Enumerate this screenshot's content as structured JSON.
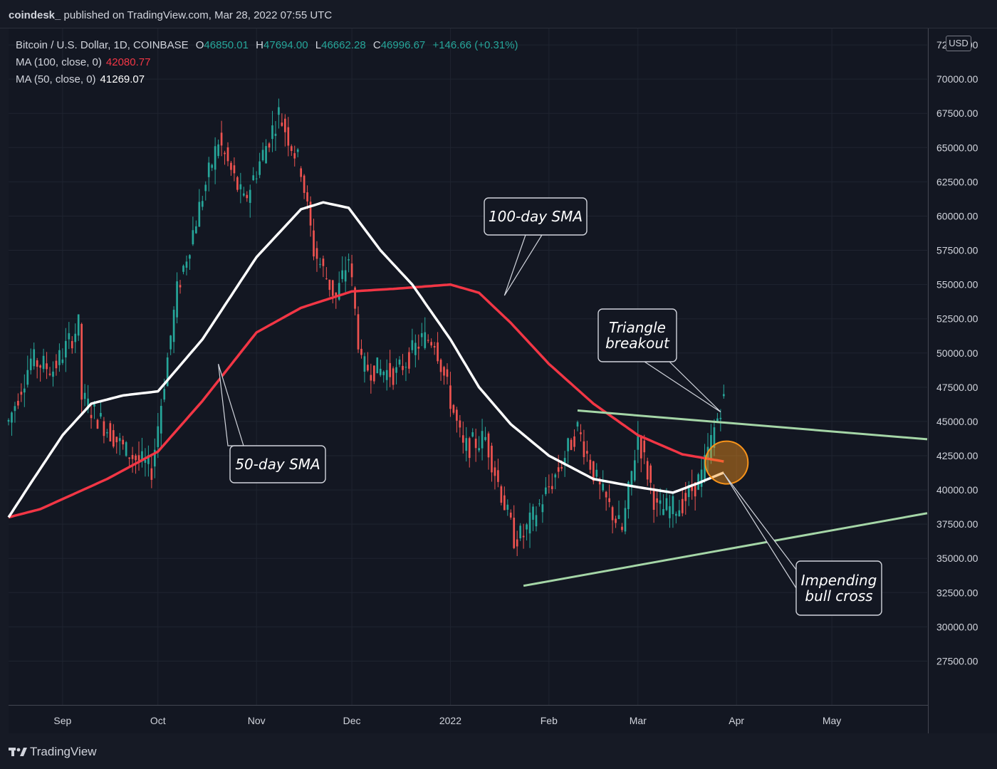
{
  "header": {
    "publisher": "coindesk_",
    "published_text": "published on TradingView.com, Mar 28, 2022 07:55 UTC"
  },
  "legend": {
    "symbol": "Bitcoin / U.S. Dollar, 1D, COINBASE",
    "open_key": "O",
    "open": "46850.01",
    "high_key": "H",
    "high": "47694.00",
    "low_key": "L",
    "low": "46662.28",
    "close_key": "C",
    "close": "46996.67",
    "change": "+146.66 (+0.31%)",
    "ma100_label": "MA (100, close, 0)",
    "ma100_value": "42080.77",
    "ma50_label": "MA (50, close, 0)",
    "ma50_value": "41269.07"
  },
  "price_axis": {
    "currency": "USD"
  },
  "footer": {
    "brand": "TradingView"
  },
  "colors": {
    "up": "#26a69a",
    "down": "#ef5350",
    "sma100": "#f23645",
    "sma50": "#ffffff",
    "triangle": "#a5d6a7",
    "highlight": "#f7931a"
  },
  "chart_data": {
    "type": "candlestick",
    "symbol": "BTCUSD",
    "timeframe": "1D",
    "y_ticks": [
      "72500.00",
      "70000.00",
      "67500.00",
      "65000.00",
      "62500.00",
      "60000.00",
      "57500.00",
      "55000.00",
      "52500.00",
      "50000.00",
      "47500.00",
      "45000.00",
      "42500.00",
      "40000.00",
      "37500.00",
      "35000.00",
      "32500.00",
      "30000.00",
      "27500.00"
    ],
    "ylim": [
      24300,
      73700
    ],
    "x_ticks": [
      {
        "label": "Sep",
        "date": "2021-09-01"
      },
      {
        "label": "Oct",
        "date": "2021-10-01"
      },
      {
        "label": "Nov",
        "date": "2021-11-01"
      },
      {
        "label": "Dec",
        "date": "2021-12-01"
      },
      {
        "label": "2022",
        "date": "2022-01-01"
      },
      {
        "label": "Feb",
        "date": "2022-02-01"
      },
      {
        "label": "Mar",
        "date": "2022-03-01"
      },
      {
        "label": "Apr",
        "date": "2022-04-01"
      },
      {
        "label": "May",
        "date": "2022-05-01"
      }
    ],
    "xlim": [
      "2021-08-15",
      "2022-05-31"
    ],
    "price_keypoints": [
      [
        "2021-08-15",
        45000
      ],
      [
        "2021-08-22",
        49500
      ],
      [
        "2021-08-29",
        48800
      ],
      [
        "2021-09-06",
        52000
      ],
      [
        "2021-09-07",
        46700
      ],
      [
        "2021-09-21",
        42800
      ],
      [
        "2021-09-29",
        41500
      ],
      [
        "2021-10-07",
        54500
      ],
      [
        "2021-10-15",
        61500
      ],
      [
        "2021-10-20",
        65500
      ],
      [
        "2021-10-28",
        61000
      ],
      [
        "2021-11-08",
        67500
      ],
      [
        "2021-11-15",
        63500
      ],
      [
        "2021-11-19",
        57500
      ],
      [
        "2021-11-26",
        54000
      ],
      [
        "2021-11-30",
        57000
      ],
      [
        "2021-12-04",
        49000
      ],
      [
        "2021-12-15",
        48500
      ],
      [
        "2021-12-23",
        51000
      ],
      [
        "2021-12-27",
        51000
      ],
      [
        "2022-01-05",
        43000
      ],
      [
        "2022-01-12",
        43800
      ],
      [
        "2022-01-21",
        36500
      ],
      [
        "2022-01-24",
        36700
      ],
      [
        "2022-02-04",
        41500
      ],
      [
        "2022-02-10",
        44500
      ],
      [
        "2022-02-17",
        40000
      ],
      [
        "2022-02-24",
        37000
      ],
      [
        "2022-03-01",
        44000
      ],
      [
        "2022-03-07",
        38500
      ],
      [
        "2022-03-14",
        38800
      ],
      [
        "2022-03-21",
        41000
      ],
      [
        "2022-03-28",
        47000
      ]
    ],
    "sma100_keypoints": [
      [
        "2021-08-15",
        38000
      ],
      [
        "2021-08-25",
        38600
      ],
      [
        "2021-09-15",
        40800
      ],
      [
        "2021-10-01",
        42800
      ],
      [
        "2021-10-15",
        46500
      ],
      [
        "2021-11-01",
        51500
      ],
      [
        "2021-11-15",
        53300
      ],
      [
        "2021-12-01",
        54500
      ],
      [
        "2021-12-15",
        54700
      ],
      [
        "2022-01-01",
        55000
      ],
      [
        "2022-01-10",
        54400
      ],
      [
        "2022-01-20",
        52200
      ],
      [
        "2022-02-01",
        49200
      ],
      [
        "2022-02-15",
        46300
      ],
      [
        "2022-03-01",
        44000
      ],
      [
        "2022-03-15",
        42600
      ],
      [
        "2022-03-28",
        42080
      ]
    ],
    "sma50_keypoints": [
      [
        "2021-08-15",
        38000
      ],
      [
        "2021-08-22",
        40500
      ],
      [
        "2021-09-01",
        44000
      ],
      [
        "2021-09-10",
        46300
      ],
      [
        "2021-09-20",
        46900
      ],
      [
        "2021-10-01",
        47200
      ],
      [
        "2021-10-15",
        51000
      ],
      [
        "2021-11-01",
        57000
      ],
      [
        "2021-11-15",
        60500
      ],
      [
        "2021-11-22",
        61000
      ],
      [
        "2021-11-30",
        60600
      ],
      [
        "2021-12-10",
        57500
      ],
      [
        "2021-12-20",
        55000
      ],
      [
        "2022-01-01",
        51000
      ],
      [
        "2022-01-10",
        47500
      ],
      [
        "2022-01-20",
        44800
      ],
      [
        "2022-02-01",
        42500
      ],
      [
        "2022-02-15",
        40800
      ],
      [
        "2022-03-01",
        40200
      ],
      [
        "2022-03-12",
        39800
      ],
      [
        "2022-03-20",
        40500
      ],
      [
        "2022-03-28",
        41269
      ]
    ],
    "trendlines": [
      {
        "name": "upper",
        "from": [
          "2022-02-10",
          45800
        ],
        "to": [
          "2022-05-31",
          43700
        ]
      },
      {
        "name": "lower",
        "from": [
          "2022-01-24",
          33000
        ],
        "to": [
          "2022-05-31",
          38300
        ]
      }
    ],
    "highlight_circle": {
      "date": "2022-03-28",
      "price": 42000
    },
    "annotations": [
      {
        "text": "100-day SMA",
        "target": [
          "2022-01-18",
          54200
        ]
      },
      {
        "text": "50-day SMA",
        "target": [
          "2021-10-20",
          49200
        ]
      },
      {
        "text_lines": [
          "Triangle",
          "breakout"
        ],
        "target": [
          "2022-03-27",
          45700
        ]
      },
      {
        "text_lines": [
          "Impending",
          "bull cross"
        ],
        "target": [
          "2022-03-28",
          41200
        ]
      }
    ]
  }
}
